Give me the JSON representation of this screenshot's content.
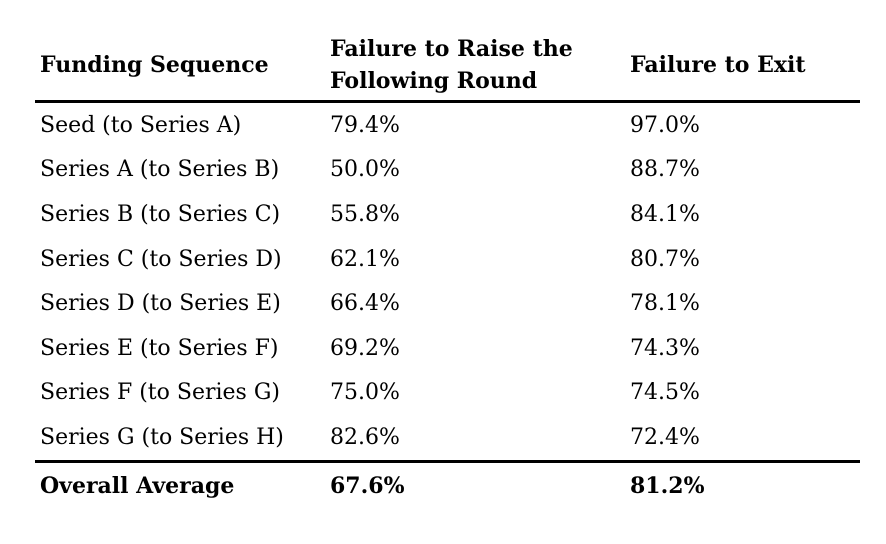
{
  "meta": {
    "background_color": "#ffffff",
    "text_color": "#000000",
    "rule_color": "#000000"
  },
  "chart_data": {
    "type": "table",
    "title": "",
    "columns": [
      "Funding Sequence",
      "Failure to Raise the Following Round",
      "Failure to Exit"
    ],
    "rows": [
      [
        "Seed (to Series A)",
        "79.4%",
        "97.0%"
      ],
      [
        "Series A (to Series B)",
        "50.0%",
        "88.7%"
      ],
      [
        "Series B (to Series C)",
        "55.8%",
        "84.1%"
      ],
      [
        "Series C (to Series D)",
        "62.1%",
        "80.7%"
      ],
      [
        "Series D (to Series E)",
        "66.4%",
        "78.1%"
      ],
      [
        "Series E (to Series F)",
        "69.2%",
        "74.3%"
      ],
      [
        "Series F (to Series G)",
        "75.0%",
        "74.5%"
      ],
      [
        "Series G (to Series H)",
        "82.6%",
        "72.4%"
      ]
    ],
    "footer_row": [
      "Overall Average",
      "67.6%",
      "81.2%"
    ],
    "numeric": {
      "failure_to_raise_pct": [
        79.4,
        50.0,
        55.8,
        62.1,
        66.4,
        69.2,
        75.0,
        82.6
      ],
      "failure_to_exit_pct": [
        97.0,
        88.7,
        84.1,
        80.7,
        78.1,
        74.3,
        74.5,
        72.4
      ],
      "overall_average_raise_pct": 67.6,
      "overall_average_exit_pct": 81.2
    }
  },
  "table": {
    "header": {
      "col1": "Funding Sequence",
      "col2": "Failure to Raise the Following Round",
      "col3": "Failure to Exit"
    },
    "rows": [
      {
        "label": "Seed (to Series A)",
        "raise": "79.4%",
        "exit": "97.0%"
      },
      {
        "label": "Series A (to Series B)",
        "raise": "50.0%",
        "exit": "88.7%"
      },
      {
        "label": "Series B (to Series C)",
        "raise": "55.8%",
        "exit": "84.1%"
      },
      {
        "label": "Series C (to Series D)",
        "raise": "62.1%",
        "exit": "80.7%"
      },
      {
        "label": "Series D (to Series E)",
        "raise": "66.4%",
        "exit": "78.1%"
      },
      {
        "label": "Series E (to Series F)",
        "raise": "69.2%",
        "exit": "74.3%"
      },
      {
        "label": "Series F (to Series G)",
        "raise": "75.0%",
        "exit": "74.5%"
      },
      {
        "label": "Series G (to Series H)",
        "raise": "82.6%",
        "exit": "72.4%"
      }
    ],
    "footer": {
      "label": "Overall Average",
      "raise": "67.6%",
      "exit": "81.2%"
    }
  }
}
